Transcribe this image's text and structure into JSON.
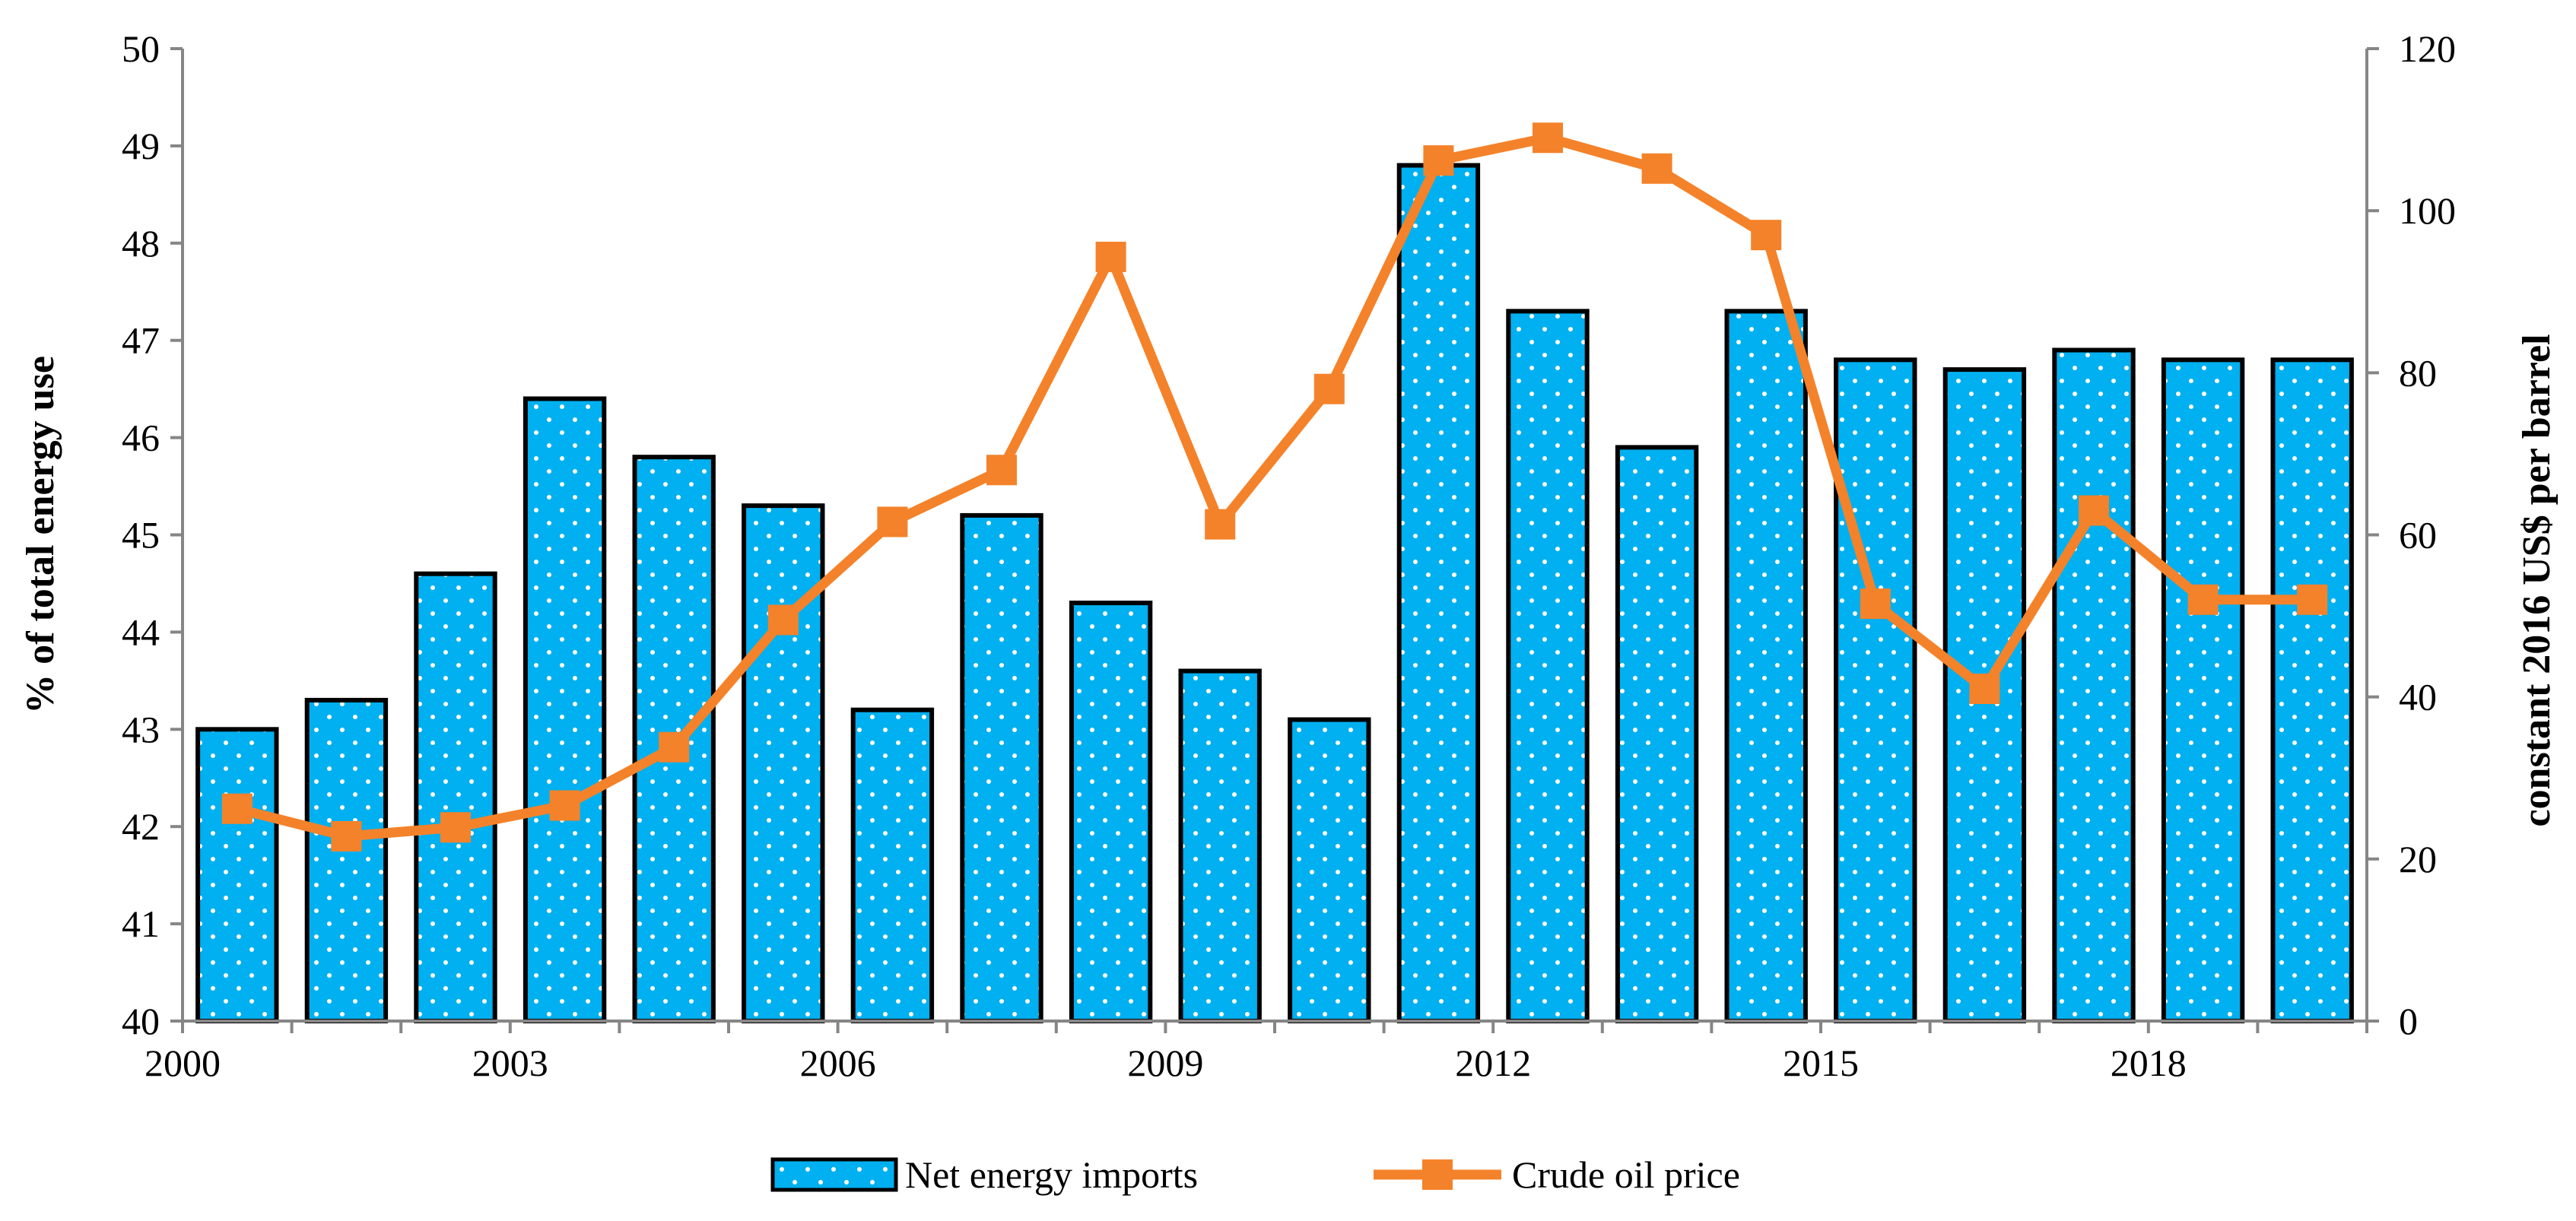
{
  "chart_data": {
    "type": "bar+line",
    "title": "",
    "categories": [
      "2000",
      "2001",
      "2002",
      "2003",
      "2004",
      "2005",
      "2006",
      "2007",
      "2008",
      "2009",
      "2010",
      "2011",
      "2012",
      "2013",
      "2014",
      "2015",
      "2016",
      "2017",
      "2018",
      "2019"
    ],
    "x_tick_labels": [
      "2000",
      "2003",
      "2006",
      "2009",
      "2012",
      "2015",
      "2018"
    ],
    "series": [
      {
        "name": "Net energy imports",
        "type": "bar",
        "axis": "left",
        "color": "#00B0F0",
        "values": [
          43.0,
          43.3,
          44.6,
          46.4,
          45.8,
          45.3,
          43.2,
          45.2,
          44.3,
          43.6,
          43.1,
          48.8,
          47.3,
          45.9,
          47.3,
          46.8,
          46.7,
          46.9,
          46.8,
          46.8
        ]
      },
      {
        "name": "Crude oil price",
        "type": "line",
        "axis": "right",
        "color": "#F4822A",
        "values": [
          26.2,
          22.8,
          23.9,
          26.6,
          33.8,
          49.5,
          61.6,
          68.0,
          94.3,
          61.3,
          78.0,
          106.2,
          109.0,
          105.2,
          97.0,
          51.5,
          41.0,
          63.0,
          52.0,
          52.0
        ]
      }
    ],
    "ylabel": "% of total energy use",
    "ylim": [
      40,
      50
    ],
    "yticks": [
      40,
      41,
      42,
      43,
      44,
      45,
      46,
      47,
      48,
      49,
      50
    ],
    "y2label": "constant 2016 US$ per barrel",
    "y2lim": [
      0,
      120
    ],
    "y2ticks": [
      0,
      20,
      40,
      60,
      80,
      100,
      120
    ],
    "legend": {
      "position": "bottom",
      "entries": [
        "Net energy imports",
        "Crude oil price"
      ]
    },
    "grid": false
  }
}
